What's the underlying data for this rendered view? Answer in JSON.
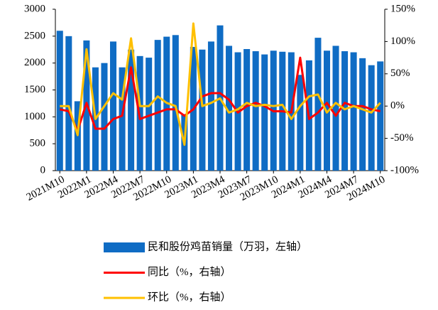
{
  "chart_data": {
    "type": "bar-line",
    "categories": [
      "2021M10",
      null,
      null,
      "2022M1",
      null,
      null,
      "2022M4",
      null,
      null,
      "2022M7",
      null,
      null,
      "2022M10",
      null,
      null,
      "2023M1",
      null,
      null,
      "2023M4",
      null,
      null,
      "2023M7",
      null,
      null,
      "2023M10",
      null,
      null,
      "2024M1",
      null,
      null,
      "2024M4",
      null,
      null,
      "2024M7",
      null,
      null,
      "2024M10"
    ],
    "series": [
      {
        "name": "民和股份鸡苗销量（万羽，左轴）",
        "type": "bar",
        "color": "#0f6cc4",
        "axis": "y",
        "values": [
          2600,
          2500,
          1290,
          2420,
          1920,
          2000,
          2400,
          1920,
          2250,
          2130,
          2100,
          2430,
          2490,
          2520,
          1050,
          2300,
          2250,
          2400,
          2700,
          2320,
          2200,
          2260,
          2220,
          2160,
          2230,
          2210,
          2200,
          1780,
          2050,
          2470,
          2230,
          2320,
          2220,
          2200,
          2090,
          1960,
          2030
        ]
      },
      {
        "name": "同比（%，右轴）",
        "type": "line",
        "color": "#ff0000",
        "axis": "y2",
        "values": [
          -5,
          -8,
          -38,
          5,
          -35,
          -35,
          -20,
          -15,
          60,
          -20,
          -15,
          -10,
          -5,
          -5,
          -15,
          -5,
          15,
          20,
          20,
          10,
          -10,
          0,
          5,
          0,
          -8,
          -8,
          -10,
          75,
          -20,
          -10,
          5,
          -15,
          5,
          0,
          0,
          -5,
          -8
        ]
      },
      {
        "name": "环比（%，右轴）",
        "type": "line",
        "color": "#ffc000",
        "axis": "y2",
        "values": [
          0,
          0,
          -45,
          88,
          -20,
          0,
          20,
          10,
          105,
          0,
          0,
          15,
          5,
          0,
          -60,
          128,
          0,
          5,
          12,
          -10,
          -5,
          5,
          0,
          2,
          0,
          2,
          -20,
          0,
          15,
          18,
          -10,
          5,
          -5,
          0,
          -5,
          -10,
          5
        ]
      }
    ],
    "ylim": [
      0,
      3000
    ],
    "yticks": [
      0,
      500,
      1000,
      1500,
      2000,
      2500,
      3000
    ],
    "y2lim": [
      -100,
      150
    ],
    "y2ticks": [
      {
        "value": -100,
        "label": "-100%"
      },
      {
        "value": -50,
        "label": "-50%"
      },
      {
        "value": 0,
        "label": "0%"
      },
      {
        "value": 50,
        "label": "50%"
      },
      {
        "value": 100,
        "label": "100%"
      },
      {
        "value": 150,
        "label": "150%"
      }
    ],
    "legend": "bottom"
  }
}
